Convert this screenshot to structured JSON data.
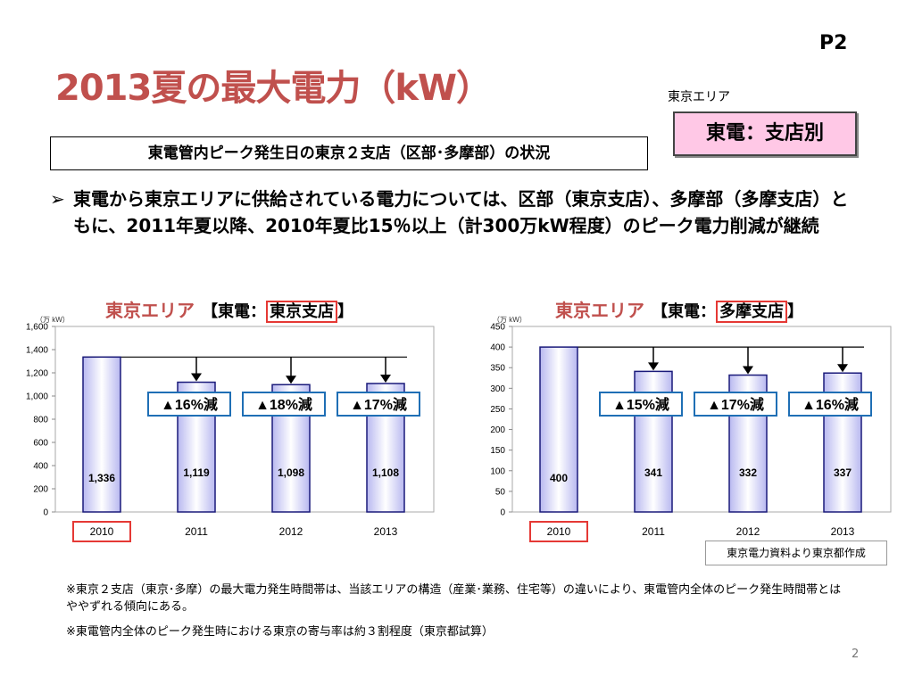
{
  "page_label": "P2",
  "title": "2013夏の最大電力（kW）",
  "area_label": "東京エリア",
  "branch_box": "東電：支店別",
  "subtitle": "東電管内ピーク発生日の東京２支店（区部･多摩部）の状況",
  "bullet": {
    "mark": "➢",
    "text": "東電から東京エリアに供給されている電力については、区部（東京支店）、多摩部（多摩支店）ともに、2011年夏以降、2010年夏比15％以上（計300万kW程度）のピーク電力削減が継続"
  },
  "colors": {
    "title": "#c0504d",
    "highlight_red": "#e53935",
    "badge_border": "#1f6fb5",
    "bar_edge": "#1a1a7a",
    "bar_center": "#ffffff",
    "bar_side": "#b8b8f0"
  },
  "chart_data": [
    {
      "type": "bar",
      "heading": {
        "area": "東京エリア",
        "open": "【東電：",
        "branch": "東京支店",
        "close": "】"
      },
      "unit": "（万 kW）",
      "categories": [
        "2010",
        "2011",
        "2012",
        "2013"
      ],
      "values": [
        1336,
        1119,
        1098,
        1108
      ],
      "value_labels": [
        "1,336",
        "1,119",
        "1,098",
        "1,108"
      ],
      "ylim": [
        0,
        1600
      ],
      "yticks": [
        "0",
        "200",
        "400",
        "600",
        "800",
        "1,000",
        "1,200",
        "1,400",
        "1,600"
      ],
      "reductions": [
        "▲16%減",
        "▲18%減",
        "▲17%減"
      ],
      "highlight_category": "2010"
    },
    {
      "type": "bar",
      "heading": {
        "area": "東京エリア",
        "open": "【東電：",
        "branch": "多摩支店",
        "close": "】"
      },
      "unit": "（万 kW）",
      "categories": [
        "2010",
        "2011",
        "2012",
        "2013"
      ],
      "values": [
        400,
        341,
        332,
        337
      ],
      "value_labels": [
        "400",
        "341",
        "332",
        "337"
      ],
      "ylim": [
        0,
        450
      ],
      "yticks": [
        "0",
        "50",
        "100",
        "150",
        "200",
        "250",
        "300",
        "350",
        "400",
        "450"
      ],
      "reductions": [
        "▲15%減",
        "▲17%減",
        "▲16%減"
      ],
      "highlight_category": "2010"
    }
  ],
  "source": "東京電力資料より東京都作成",
  "notes": [
    "※東京２支店（東京･多摩）の最大電力発生時間帯は、当該エリアの構造（産業･業務、住宅等）の違いにより、東電管内全体のピーク発生時間帯とはややずれる傾向にある。",
    "※東電管内全体のピーク発生時における東京の寄与率は約３割程度（東京都試算）"
  ],
  "slide_number": "2"
}
